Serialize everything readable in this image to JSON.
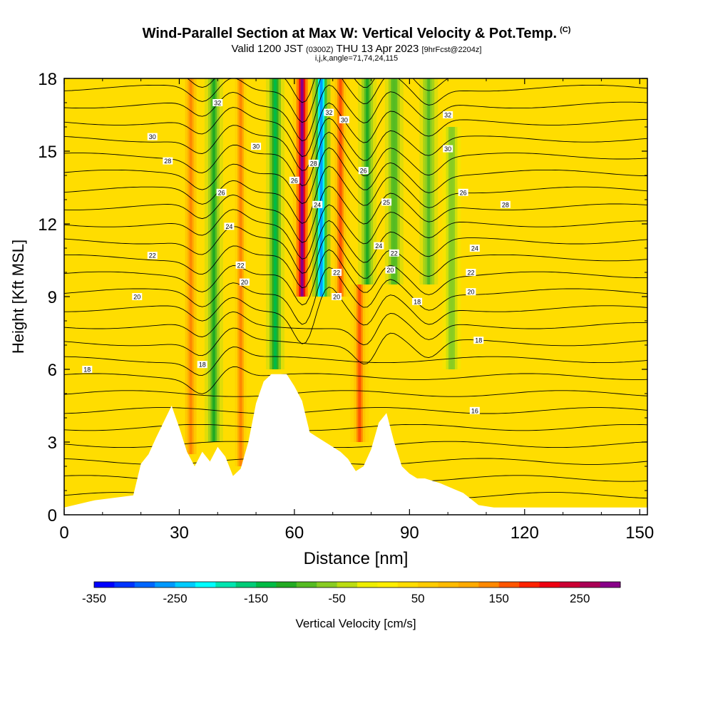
{
  "title": {
    "main": "Wind-Parallel Section at Max W: Vertical Velocity & Pot.Temp.",
    "copyright": "(C)",
    "valid_prefix": "Valid 1200 JST",
    "valid_zulu": "(0300Z)",
    "valid_date": "THU 13 Apr 2023",
    "forecast_info": "[9hrFcst@2204z]",
    "indices": "i,j,k,angle=71,74,24,115"
  },
  "chart_data": {
    "type": "heatmap",
    "xlabel": "Distance [nm]",
    "ylabel": "Height [Kft MSL]",
    "xlim": [
      0,
      152
    ],
    "ylim": [
      0,
      18
    ],
    "x_ticks": [
      0,
      30,
      60,
      90,
      120,
      150
    ],
    "y_ticks": [
      0,
      3,
      6,
      9,
      12,
      15,
      18
    ],
    "terrain": {
      "x": [
        0,
        8,
        18,
        20,
        22,
        24,
        28,
        30,
        32,
        34,
        36,
        38,
        40,
        42,
        44,
        46,
        48,
        50,
        52,
        54,
        58,
        60,
        62,
        64,
        66,
        70,
        72,
        74,
        76,
        78,
        80,
        82,
        84,
        86,
        88,
        90,
        92,
        94,
        98,
        104,
        108,
        112,
        152
      ],
      "height": [
        0.3,
        0.6,
        0.8,
        2.1,
        2.5,
        3.2,
        4.5,
        3.6,
        2.6,
        2.0,
        2.6,
        2.2,
        2.8,
        2.4,
        1.6,
        1.9,
        3.0,
        4.6,
        5.5,
        5.8,
        5.8,
        5.3,
        4.7,
        3.4,
        3.2,
        2.8,
        2.6,
        2.3,
        1.8,
        2.0,
        2.7,
        3.8,
        4.2,
        3.0,
        2.0,
        1.7,
        1.5,
        1.5,
        1.3,
        0.9,
        0.4,
        0.3,
        0.3
      ]
    },
    "vertical_velocity_cores": [
      {
        "x": 33,
        "z_min": 2.5,
        "z_max": 18,
        "w": 140
      },
      {
        "x": 39,
        "z_min": 3.0,
        "z_max": 18,
        "w": -110
      },
      {
        "x": 46,
        "z_min": 2.0,
        "z_max": 18,
        "w": 130
      },
      {
        "x": 55,
        "z_min": 6.0,
        "z_max": 18,
        "w": -140
      },
      {
        "x": 62,
        "z_min": 9.0,
        "z_max": 18,
        "w": 275
      },
      {
        "x": 67,
        "z_min": 9.0,
        "z_max": 18,
        "w": -260
      },
      {
        "x": 72,
        "z_min": 9.0,
        "z_max": 18,
        "w": 160
      },
      {
        "x": 77,
        "z_min": 3.0,
        "z_max": 9.5,
        "w": 170
      },
      {
        "x": 79,
        "z_min": 9.5,
        "z_max": 18,
        "w": -120
      },
      {
        "x": 86,
        "z_min": 9.5,
        "z_max": 18,
        "w": -100
      },
      {
        "x": 95,
        "z_min": 9.5,
        "z_max": 18,
        "w": -90
      },
      {
        "x": 101,
        "z_min": 6.0,
        "z_max": 16,
        "w": -70
      }
    ],
    "potential_temperature_labels": [
      {
        "x": 40,
        "z": 17.0,
        "value": "32"
      },
      {
        "x": 23,
        "z": 15.6,
        "value": "30"
      },
      {
        "x": 50,
        "z": 15.2,
        "value": "30"
      },
      {
        "x": 27,
        "z": 14.6,
        "value": "28"
      },
      {
        "x": 41,
        "z": 13.3,
        "value": "26"
      },
      {
        "x": 43,
        "z": 11.9,
        "value": "24"
      },
      {
        "x": 23,
        "z": 10.7,
        "value": "22"
      },
      {
        "x": 46,
        "z": 10.3,
        "value": "22"
      },
      {
        "x": 47,
        "z": 9.6,
        "value": "20"
      },
      {
        "x": 19,
        "z": 9.0,
        "value": "20"
      },
      {
        "x": 6,
        "z": 6.0,
        "value": "18"
      },
      {
        "x": 36,
        "z": 6.2,
        "value": "18"
      },
      {
        "x": 69,
        "z": 16.6,
        "value": "32"
      },
      {
        "x": 73,
        "z": 16.3,
        "value": "30"
      },
      {
        "x": 65,
        "z": 14.5,
        "value": "28"
      },
      {
        "x": 60,
        "z": 13.8,
        "value": "26"
      },
      {
        "x": 66,
        "z": 12.8,
        "value": "24"
      },
      {
        "x": 78,
        "z": 14.2,
        "value": "26"
      },
      {
        "x": 84,
        "z": 12.9,
        "value": "25"
      },
      {
        "x": 82,
        "z": 11.1,
        "value": "24"
      },
      {
        "x": 86,
        "z": 10.8,
        "value": "22"
      },
      {
        "x": 85,
        "z": 10.1,
        "value": "20"
      },
      {
        "x": 71,
        "z": 10.0,
        "value": "22"
      },
      {
        "x": 71,
        "z": 9.0,
        "value": "20"
      },
      {
        "x": 92,
        "z": 8.8,
        "value": "18"
      },
      {
        "x": 100,
        "z": 16.5,
        "value": "32"
      },
      {
        "x": 100,
        "z": 15.1,
        "value": "30"
      },
      {
        "x": 104,
        "z": 13.3,
        "value": "26"
      },
      {
        "x": 115,
        "z": 12.8,
        "value": "28"
      },
      {
        "x": 107,
        "z": 11.0,
        "value": "24"
      },
      {
        "x": 106,
        "z": 10.0,
        "value": "22"
      },
      {
        "x": 106,
        "z": 9.2,
        "value": "20"
      },
      {
        "x": 108,
        "z": 7.2,
        "value": "18"
      },
      {
        "x": 107,
        "z": 4.3,
        "value": "16"
      }
    ]
  },
  "colorbar": {
    "label": "Vertical Velocity [cm/s]",
    "min": -350,
    "max": 275,
    "step": 25,
    "tick_labels": [
      "-350",
      "-250",
      "-150",
      "-50",
      "50",
      "150",
      "250"
    ],
    "colors": [
      "#0000ff",
      "#0033ff",
      "#0066ff",
      "#0099ff",
      "#00ccff",
      "#00ffff",
      "#00e5b0",
      "#00cc77",
      "#00bb44",
      "#22aa22",
      "#55bb22",
      "#88cc22",
      "#bbdd11",
      "#eeee00",
      "#ffee00",
      "#ffdd00",
      "#ffcc00",
      "#ffbb00",
      "#ffaa00",
      "#ff8800",
      "#ff5500",
      "#ff2200",
      "#ee0011",
      "#cc0033",
      "#aa0055",
      "#880088"
    ]
  }
}
